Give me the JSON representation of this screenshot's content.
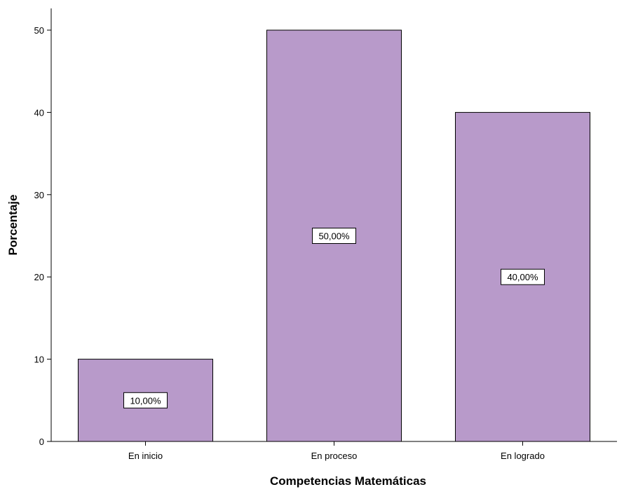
{
  "chart_data": {
    "type": "bar",
    "categories": [
      "En inicio",
      "En proceso",
      "En logrado"
    ],
    "values": [
      10,
      50,
      40
    ],
    "data_labels": [
      "10,00%",
      "50,00%",
      "40,00%"
    ],
    "title": "",
    "xlabel": "Competencias Matemáticas",
    "ylabel": "Porcentaje",
    "ylim": [
      0,
      50
    ],
    "yticks": [
      0,
      10,
      20,
      30,
      40,
      50
    ],
    "grid": false,
    "bar_color": "#b89aca",
    "bar_edge_color": "#000000"
  }
}
